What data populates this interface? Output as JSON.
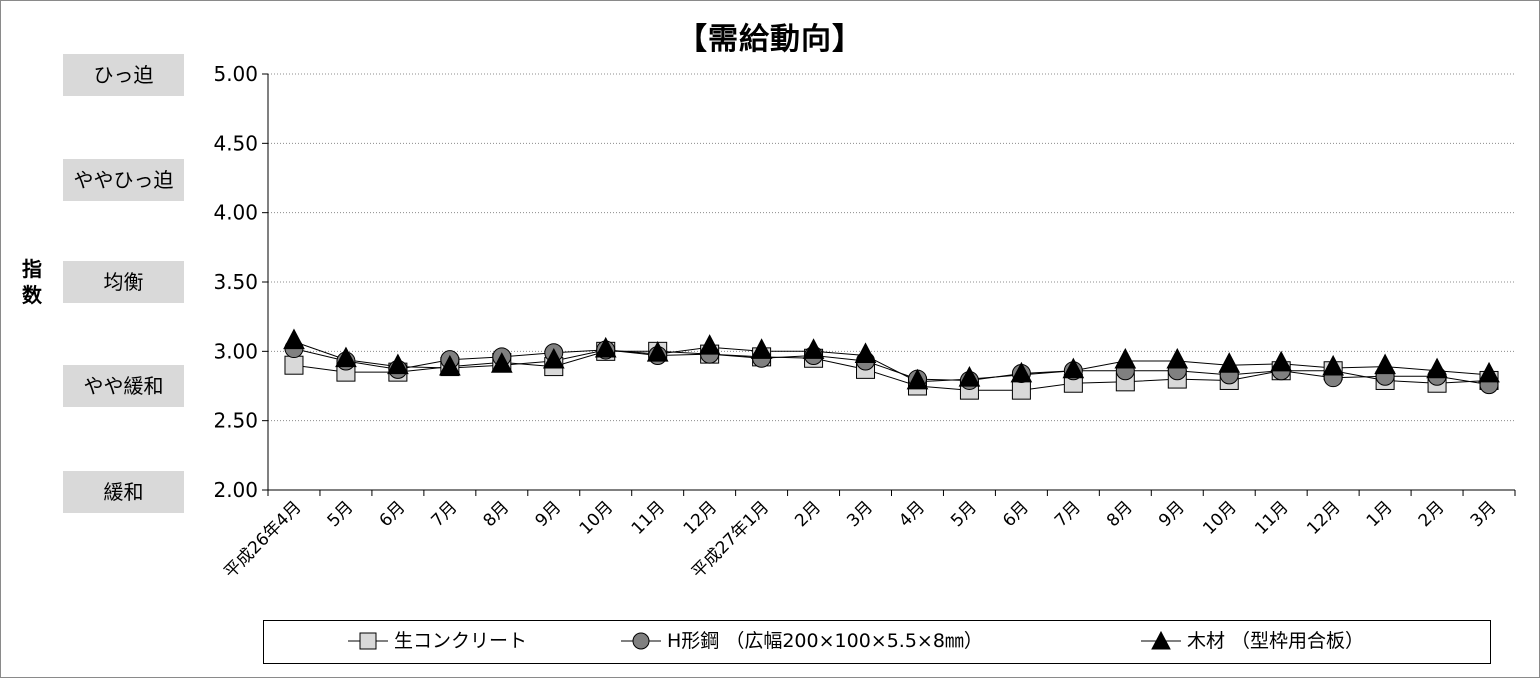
{
  "chart_data": {
    "type": "line",
    "title": "【需給動向】",
    "ylabel": "指数",
    "ylim": [
      2.0,
      5.0
    ],
    "yticks": [
      "5.00",
      "4.50",
      "4.00",
      "3.50",
      "3.00",
      "2.50",
      "2.00"
    ],
    "grid": true,
    "legend_position": "bottom",
    "bands": [
      "ひっ迫",
      "ややひっ迫",
      "均衡",
      "やや緩和",
      "緩和"
    ],
    "categories": [
      "平成26年4月",
      "5月",
      "6月",
      "7月",
      "8月",
      "9月",
      "10月",
      "11月",
      "12月",
      "平成27年1月",
      "2月",
      "3月",
      "4月",
      "5月",
      "6月",
      "7月",
      "8月",
      "9月",
      "10月",
      "11月",
      "12月",
      "1月",
      "2月",
      "3月"
    ],
    "series": [
      {
        "name": "生コンクリート",
        "marker": "square",
        "color": "#d9d9d9",
        "values": [
          2.9,
          2.85,
          2.85,
          2.89,
          2.92,
          2.89,
          3.0,
          3.0,
          2.98,
          2.96,
          2.95,
          2.87,
          2.75,
          2.72,
          2.72,
          2.77,
          2.78,
          2.8,
          2.79,
          2.86,
          2.86,
          2.79,
          2.77,
          2.79
        ]
      },
      {
        "name": "H形鋼 （広幅200×100×5.5×8㎜）",
        "marker": "circle",
        "color": "#808080",
        "values": [
          3.02,
          2.93,
          2.87,
          2.94,
          2.96,
          2.99,
          3.01,
          2.97,
          2.98,
          2.95,
          2.97,
          2.93,
          2.8,
          2.79,
          2.84,
          2.86,
          2.86,
          2.86,
          2.83,
          2.86,
          2.81,
          2.82,
          2.82,
          2.76
        ]
      },
      {
        "name": "木材 （型枠用合板）",
        "marker": "triangle",
        "color": "#000000",
        "values": [
          3.07,
          2.94,
          2.89,
          2.88,
          2.9,
          2.93,
          3.01,
          2.98,
          3.03,
          3.0,
          3.0,
          2.97,
          2.78,
          2.8,
          2.83,
          2.86,
          2.93,
          2.93,
          2.9,
          2.91,
          2.88,
          2.89,
          2.86,
          2.83
        ]
      }
    ]
  }
}
